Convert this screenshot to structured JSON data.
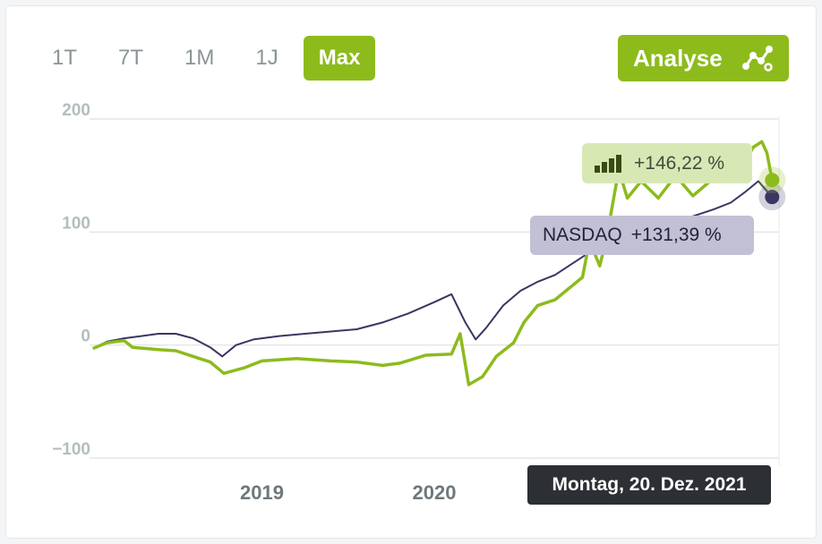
{
  "range_tabs": [
    {
      "label": "1T",
      "active": false
    },
    {
      "label": "7T",
      "active": false
    },
    {
      "label": "1M",
      "active": false
    },
    {
      "label": "1J",
      "active": false
    },
    {
      "label": "Max",
      "active": true
    }
  ],
  "analyse_button": {
    "label": "Analyse",
    "icon": "chart-network-icon"
  },
  "tooltip": {
    "fund_value": "+146,22 %",
    "fund_icon": "bar-chart-icon",
    "benchmark_name": "NASDAQ",
    "benchmark_value": "+131,39 %",
    "date": "Montag, 20. Dez. 2021"
  },
  "colors": {
    "fund": "#8dbb1c",
    "benchmark": "#3b3563",
    "accent": "#8dbb1c"
  },
  "chart_data": {
    "type": "line",
    "y_ticks": [
      "200",
      "100",
      "0",
      "−100"
    ],
    "y_tick_values": [
      200,
      100,
      0,
      -100
    ],
    "ylim": [
      -100,
      200
    ],
    "x_ticks": [
      "2019",
      "2020"
    ],
    "x_tick_values": [
      2019.0,
      2020.0
    ],
    "xlim": [
      2018.0,
      2022.0
    ],
    "grid": true,
    "series": [
      {
        "name": "",
        "color": "#8dbb1c",
        "points": [
          [
            2018.02,
            -3
          ],
          [
            2018.1,
            2
          ],
          [
            2018.2,
            4
          ],
          [
            2018.25,
            -2
          ],
          [
            2018.4,
            -4
          ],
          [
            2018.5,
            -5
          ],
          [
            2018.6,
            -10
          ],
          [
            2018.7,
            -15
          ],
          [
            2018.78,
            -25
          ],
          [
            2018.9,
            -20
          ],
          [
            2019.0,
            -14
          ],
          [
            2019.2,
            -12
          ],
          [
            2019.4,
            -14
          ],
          [
            2019.55,
            -15
          ],
          [
            2019.7,
            -18
          ],
          [
            2019.8,
            -16
          ],
          [
            2019.95,
            -9
          ],
          [
            2020.1,
            -8
          ],
          [
            2020.15,
            10
          ],
          [
            2020.2,
            -35
          ],
          [
            2020.28,
            -28
          ],
          [
            2020.36,
            -10
          ],
          [
            2020.46,
            2
          ],
          [
            2020.52,
            20
          ],
          [
            2020.6,
            35
          ],
          [
            2020.7,
            40
          ],
          [
            2020.78,
            50
          ],
          [
            2020.86,
            60
          ],
          [
            2020.9,
            92
          ],
          [
            2020.96,
            70
          ],
          [
            2021.0,
            95
          ],
          [
            2021.07,
            155
          ],
          [
            2021.12,
            130
          ],
          [
            2021.2,
            145
          ],
          [
            2021.3,
            130
          ],
          [
            2021.4,
            150
          ],
          [
            2021.5,
            132
          ],
          [
            2021.6,
            145
          ],
          [
            2021.7,
            150
          ],
          [
            2021.78,
            155
          ],
          [
            2021.85,
            175
          ],
          [
            2021.9,
            180
          ],
          [
            2021.93,
            170
          ],
          [
            2021.96,
            146
          ]
        ]
      },
      {
        "name": "NASDAQ",
        "color": "#3b3563",
        "points": [
          [
            2018.02,
            -3
          ],
          [
            2018.1,
            3
          ],
          [
            2018.2,
            6
          ],
          [
            2018.3,
            8
          ],
          [
            2018.4,
            10
          ],
          [
            2018.5,
            10
          ],
          [
            2018.6,
            6
          ],
          [
            2018.7,
            -2
          ],
          [
            2018.77,
            -10
          ],
          [
            2018.85,
            0
          ],
          [
            2018.95,
            5
          ],
          [
            2019.1,
            8
          ],
          [
            2019.25,
            10
          ],
          [
            2019.4,
            12
          ],
          [
            2019.55,
            14
          ],
          [
            2019.7,
            20
          ],
          [
            2019.85,
            28
          ],
          [
            2020.0,
            38
          ],
          [
            2020.1,
            45
          ],
          [
            2020.18,
            20
          ],
          [
            2020.24,
            5
          ],
          [
            2020.3,
            15
          ],
          [
            2020.4,
            35
          ],
          [
            2020.5,
            48
          ],
          [
            2020.6,
            56
          ],
          [
            2020.7,
            62
          ],
          [
            2020.8,
            72
          ],
          [
            2020.9,
            82
          ],
          [
            2021.0,
            95
          ],
          [
            2021.08,
            100
          ],
          [
            2021.16,
            88
          ],
          [
            2021.22,
            92
          ],
          [
            2021.32,
            100
          ],
          [
            2021.42,
            110
          ],
          [
            2021.52,
            115
          ],
          [
            2021.62,
            120
          ],
          [
            2021.72,
            126
          ],
          [
            2021.8,
            135
          ],
          [
            2021.88,
            145
          ],
          [
            2021.96,
            131
          ]
        ]
      }
    ]
  }
}
